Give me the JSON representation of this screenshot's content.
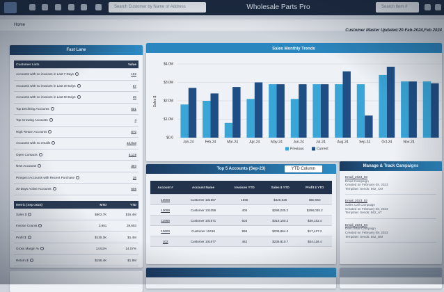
{
  "header": {
    "app_title": "Wholesale Parts Pro",
    "search_placeholder": "Search Customer by Name or Address",
    "item_search_placeholder": "Search Item #"
  },
  "breadcrumb": "Home",
  "update_note": "Customer Master Updated:20-Feb-2024,Feb 2024",
  "fast_lane": {
    "title": "Fast Lane",
    "columns": [
      "Customer Lists",
      "Value"
    ],
    "rows": [
      [
        "Accounts with no invoices in Last 7 Days",
        "192"
      ],
      [
        "Accounts with no invoices in Last 30 Days",
        "57"
      ],
      [
        "Accounts with no invoices in Last 60 Days",
        "26"
      ],
      [
        "Top Declining Accounts",
        "601"
      ],
      [
        "Top Growing Accounts",
        "4"
      ],
      [
        "High Return Accounts",
        "870"
      ],
      [
        "Accounts with no emails",
        "13,813"
      ],
      [
        "Open Contacts",
        "8,119"
      ],
      [
        "New Accounts",
        "394"
      ],
      [
        "Prospect Accounts with Recent Purchase",
        "28"
      ],
      [
        "30-Days Active Accounts",
        "608"
      ]
    ]
  },
  "metrics": {
    "columns": [
      "Metric (Sep-2023)",
      "MTD",
      "YTD"
    ],
    "rows": [
      [
        "Sales $",
        "$602.7K",
        "$16.4M"
      ],
      [
        "Invoice Counts",
        "3,651",
        "39,803"
      ],
      [
        "Profit $",
        "$135.3K",
        "$1.4M"
      ],
      [
        "Gross Margin %",
        "14.51%",
        "14.07%"
      ],
      [
        "Return $",
        "$155.4K",
        "$1.8M"
      ]
    ]
  },
  "top_accounts": {
    "title": "Top 5 Accounts (Sep-23)",
    "dropdown": "YTD Column",
    "columns": [
      "Account #",
      "Account Name",
      "Invoices YTD",
      "Sales $ YTD",
      "Profit $ YTD"
    ],
    "rows": [
      [
        "10000",
        "Customer 101667",
        "1665",
        "$426,625",
        "$50,050"
      ],
      [
        "10098",
        "Customer 101058",
        "405",
        "$298,035.2",
        "$298,035.2"
      ],
      [
        "11669",
        "Customer 101671",
        "603",
        "$318,180.2",
        "$39,152.4"
      ],
      [
        "10600",
        "Customer 10416",
        "996",
        "$236,864.2",
        "$17,427.2"
      ],
      [
        "102",
        "Customer 101677",
        "462",
        "$236,810.7",
        "$44,116.4"
      ]
    ]
  },
  "campaigns": {
    "title": "Manage & Track Campaigns",
    "items": [
      [
        "Email_2023_03",
        "Email Campaign",
        "Created on February 08, 2023",
        "Template: Sends: 562_CM"
      ],
      [
        "Email_2023_02",
        "Sales Call Campaign",
        "Created on February 08, 2023",
        "Template: Sends: 562_AT"
      ],
      [
        "Email_2024_04",
        "Direct Mail Campaign",
        "Created on February 08, 2023",
        "Template: Sends: 562_DM"
      ]
    ]
  },
  "chart_data": {
    "type": "bar",
    "title": "Sales Monthly Trends",
    "y_label": "Sales $",
    "categories": [
      "Jan-24",
      "Feb-24",
      "Mar-24",
      "Apr-24",
      "May-24",
      "Jun-24",
      "Jul-24",
      "Aug-24",
      "Sep-24",
      "Oct-24",
      "Nov-24",
      null
    ],
    "series": [
      {
        "name": "Previous",
        "color": "#3aa6d8",
        "values": [
          1800000,
          2000000,
          800000,
          2100000,
          2900000,
          2100000,
          2900000,
          2900000,
          2900000,
          3400000,
          3050000,
          3050000
        ]
      },
      {
        "name": "Current",
        "color": "#1f4e85",
        "values": [
          2700000,
          2400000,
          2750000,
          3000000,
          2900000,
          2900000,
          2900000,
          3600000,
          1200000,
          3850000,
          3050000,
          2950000
        ]
      }
    ],
    "ylim": [
      0,
      4000000
    ],
    "yticks": [
      {
        "value": 0,
        "label": "$0.0"
      },
      {
        "value": 1000000,
        "label": "$1.0M"
      },
      {
        "value": 2000000,
        "label": "$2.0M"
      },
      {
        "value": 3000000,
        "label": "$3.0M"
      },
      {
        "value": 4000000,
        "label": "$4.0M"
      }
    ],
    "grid": true,
    "legend": "bottom"
  }
}
